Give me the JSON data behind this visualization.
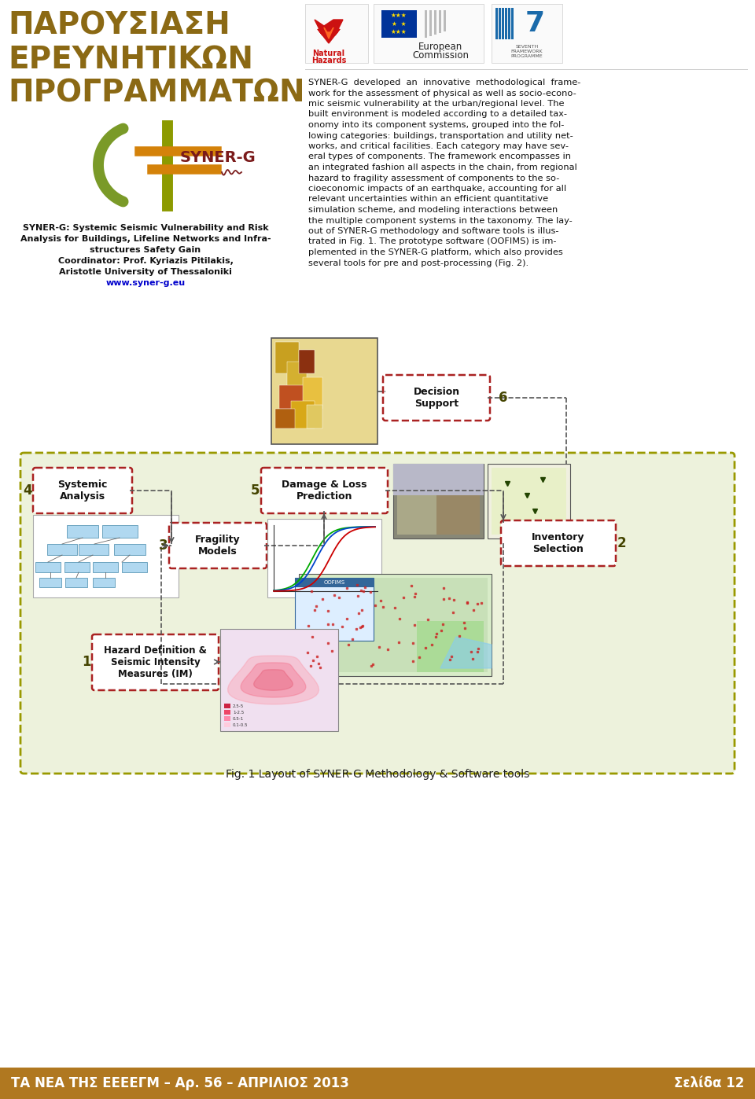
{
  "bg_color": "#ffffff",
  "title_color": "#8B6914",
  "title_lines": [
    "ΠΑΡΟΥΣΙΑΣΗ",
    "ΕΡΕΥΝΗΤΙΚΩΝ",
    "ΠΡΟΓΡΑΜΜΑΤΩΝ"
  ],
  "title_fontsize": 28,
  "footer_bar_color": "#b07820",
  "footer_left": "ΤΑ ΝΕΑ ΤΗΣ ΕΕΕΕΓΜ – Αρ. 56 – ΑΠΡΙΛΙΟΣ 2013",
  "footer_right": "Σελίδα 12",
  "footer_fontsize": 12,
  "left_desc_bold": [
    "SYNER-G: Systemic Seismic Vulnerability and Risk",
    "Analysis for Buildings, Lifeline Networks and Infra-",
    "structures Safety Gain"
  ],
  "left_desc_normal": [
    "Coordinator: Prof. Kyriazis Pitilakis,",
    "Aristotle University of Thessaloniki"
  ],
  "left_desc_link": "www.syner-g.eu",
  "syner_g_orange": "#d4820a",
  "syner_g_olive": "#8c9a00",
  "syner_g_green": "#7a9a28",
  "syner_g_red": "#7a1a1a",
  "diagram_bg": "#edf2dc",
  "node_border": "#aa2222",
  "node_text": "#000000",
  "num_color": "#444400",
  "fig_caption": "Fig. 1 Layout of SYNER-G Methodology & Software tools"
}
